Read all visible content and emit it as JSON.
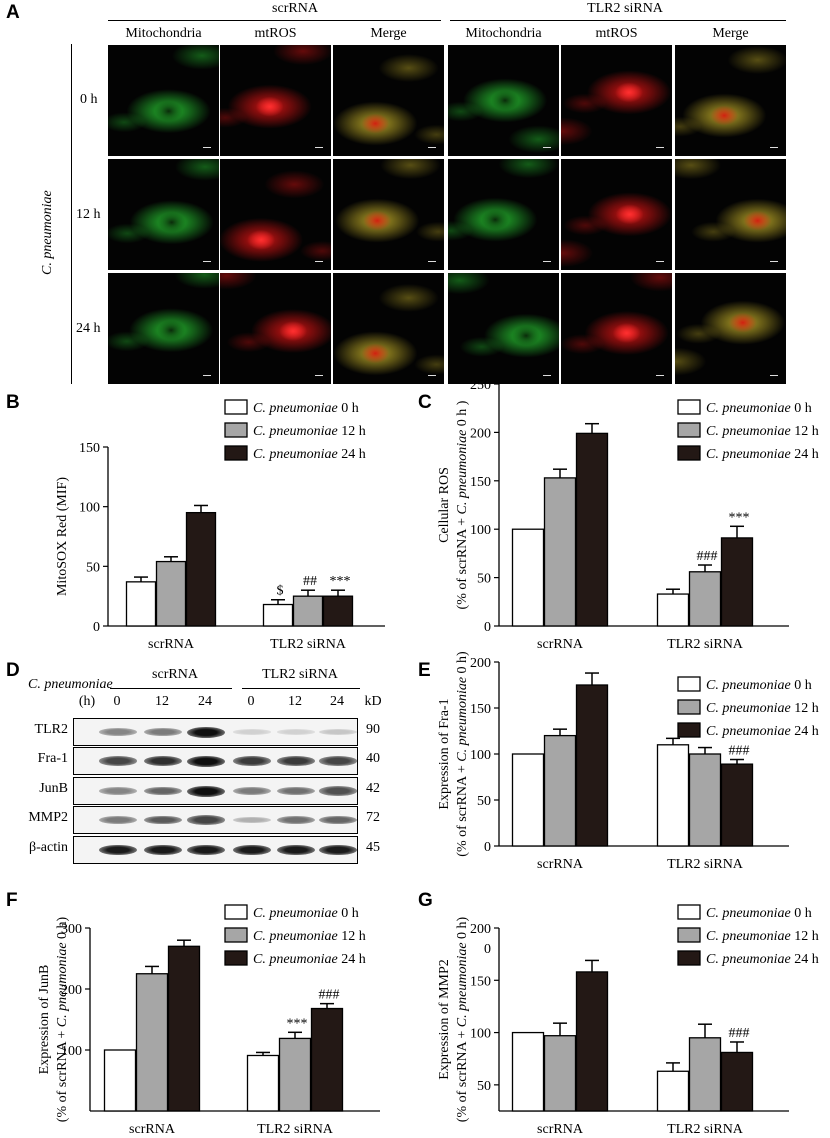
{
  "panel_a": {
    "label": "A",
    "groups": [
      "scrRNA",
      "TLR2 siRNA"
    ],
    "column_headers": [
      "Mitochondria",
      "mtROS",
      "Merge",
      "Mitochondria",
      "mtROS",
      "Merge"
    ],
    "row_labels": [
      "0 h",
      "12 h",
      "24 h"
    ],
    "side_label": "C. pneumoniae"
  },
  "panel_d": {
    "label": "D",
    "title_label": "C. pneumoniae",
    "groups": [
      "scrRNA",
      "TLR2 siRNA"
    ],
    "time_unit": "(h)",
    "times": [
      "0",
      "12",
      "24",
      "0",
      "12",
      "24"
    ],
    "kd_label": "kD",
    "rows": [
      {
        "name": "TLR2",
        "kd": "90",
        "intensity": [
          0.45,
          0.5,
          1.0,
          0.1,
          0.1,
          0.15
        ]
      },
      {
        "name": "Fra-1",
        "kd": "40",
        "intensity": [
          0.75,
          0.85,
          1.0,
          0.8,
          0.8,
          0.75
        ]
      },
      {
        "name": "JunB",
        "kd": "42",
        "intensity": [
          0.45,
          0.6,
          1.0,
          0.5,
          0.55,
          0.7
        ]
      },
      {
        "name": "MMP2",
        "kd": "72",
        "intensity": [
          0.5,
          0.65,
          0.75,
          0.25,
          0.55,
          0.6
        ]
      },
      {
        "name": "β-actin",
        "kd": "45",
        "intensity": [
          0.95,
          0.95,
          0.95,
          0.95,
          0.95,
          0.95
        ]
      }
    ]
  },
  "legend": {
    "prefix": "C. pneumoniae",
    "times": [
      "0 h",
      "12 h",
      "24 h"
    ],
    "colors": [
      "#ffffff",
      "#a6a6a6",
      "#231815"
    ]
  },
  "chart_data": [
    {
      "id": "B",
      "label": "B",
      "type": "bar",
      "categories": [
        "scrRNA",
        "TLR2 siRNA"
      ],
      "ylabel": "MitoSOX Red (MIF)",
      "ylabel2": "",
      "ylim": [
        0,
        150
      ],
      "yticks": [
        0,
        50,
        100,
        150
      ],
      "series": [
        {
          "name": "C. pneumoniae 0 h",
          "values": [
            37,
            18
          ],
          "errors": [
            4,
            4
          ]
        },
        {
          "name": "C. pneumoniae 12 h",
          "values": [
            54,
            25
          ],
          "errors": [
            4,
            5
          ]
        },
        {
          "name": "C. pneumoniae 24 h",
          "values": [
            95,
            25
          ],
          "errors": [
            6,
            5
          ]
        }
      ],
      "annotations": [
        [
          "",
          ""
        ],
        [
          "",
          "##"
        ],
        [
          "",
          "***"
        ]
      ],
      "annotations_extra": [
        [
          "",
          "$"
        ],
        [
          "",
          ""
        ],
        [
          "",
          ""
        ]
      ]
    },
    {
      "id": "C",
      "label": "C",
      "type": "bar",
      "categories": [
        "scrRNA",
        "TLR2 siRNA"
      ],
      "ylabel": "Cellular ROS",
      "ylabel2": "(% of scrRNA + C. pneumoniae 0 h )",
      "ylim": [
        0,
        250
      ],
      "yticks": [
        0,
        50,
        100,
        150,
        200,
        250
      ],
      "series": [
        {
          "name": "C. pneumoniae 0 h",
          "values": [
            100,
            33
          ],
          "errors": [
            0,
            5
          ]
        },
        {
          "name": "C. pneumoniae 12 h",
          "values": [
            153,
            56
          ],
          "errors": [
            9,
            7
          ]
        },
        {
          "name": "C. pneumoniae 24 h",
          "values": [
            199,
            91
          ],
          "errors": [
            10,
            12
          ]
        }
      ],
      "annotations": [
        [
          "",
          ""
        ],
        [
          "",
          "###"
        ],
        [
          "",
          "***"
        ]
      ]
    },
    {
      "id": "E",
      "label": "E",
      "type": "bar",
      "categories": [
        "scrRNA",
        "TLR2 siRNA"
      ],
      "ylabel": "Expression of Fra-1",
      "ylabel2": "(% of scrRNA + C. pneumoniae 0 h)",
      "ylim": [
        0,
        200
      ],
      "yticks": [
        0,
        50,
        100,
        150,
        200
      ],
      "series": [
        {
          "name": "C. pneumoniae 0 h",
          "values": [
            100,
            110
          ],
          "errors": [
            0,
            7
          ]
        },
        {
          "name": "C. pneumoniae 12 h",
          "values": [
            120,
            100
          ],
          "errors": [
            7,
            7
          ]
        },
        {
          "name": "C. pneumoniae 24 h",
          "values": [
            175,
            89
          ],
          "errors": [
            13,
            5
          ]
        }
      ],
      "annotations": [
        [
          "",
          ""
        ],
        [
          "",
          ""
        ],
        [
          "",
          "###"
        ]
      ]
    },
    {
      "id": "F",
      "label": "F",
      "type": "bar",
      "categories": [
        "scrRNA",
        "TLR2 siRNA"
      ],
      "ylabel": "Expression of JunB",
      "ylabel2": "(% of scrRNA + C. pneumoniae 0 h)",
      "ylim": [
        0,
        300
      ],
      "yticks": [
        100,
        200,
        300
      ],
      "series": [
        {
          "name": "C. pneumoniae 0 h",
          "values": [
            100,
            91
          ],
          "errors": [
            0,
            5
          ]
        },
        {
          "name": "C. pneumoniae 12 h",
          "values": [
            225,
            119
          ],
          "errors": [
            12,
            10
          ]
        },
        {
          "name": "C. pneumoniae 24 h",
          "values": [
            270,
            168
          ],
          "errors": [
            10,
            8
          ]
        }
      ],
      "annotations": [
        [
          "",
          ""
        ],
        [
          "",
          "***"
        ],
        [
          "",
          "###"
        ]
      ]
    },
    {
      "id": "G",
      "label": "G",
      "type": "bar",
      "categories": [
        "scrRNA",
        "TLR2 siRNA"
      ],
      "ylabel": "Expression of MMP2",
      "ylabel2": "(% of scrRNA + C. pneumoniae 0 h)",
      "ylim": [
        25,
        200
      ],
      "yticks": [
        50,
        100,
        150,
        200
      ],
      "extra_tick": "0",
      "series": [
        {
          "name": "C. pneumoniae 0 h",
          "values": [
            100,
            63
          ],
          "errors": [
            0,
            8
          ]
        },
        {
          "name": "C. pneumoniae 12 h",
          "values": [
            97,
            95
          ],
          "errors": [
            12,
            13
          ]
        },
        {
          "name": "C. pneumoniae 24 h",
          "values": [
            158,
            81
          ],
          "errors": [
            11,
            10
          ]
        }
      ],
      "annotations": [
        [
          "",
          ""
        ],
        [
          "",
          ""
        ],
        [
          "",
          "###"
        ]
      ]
    }
  ]
}
